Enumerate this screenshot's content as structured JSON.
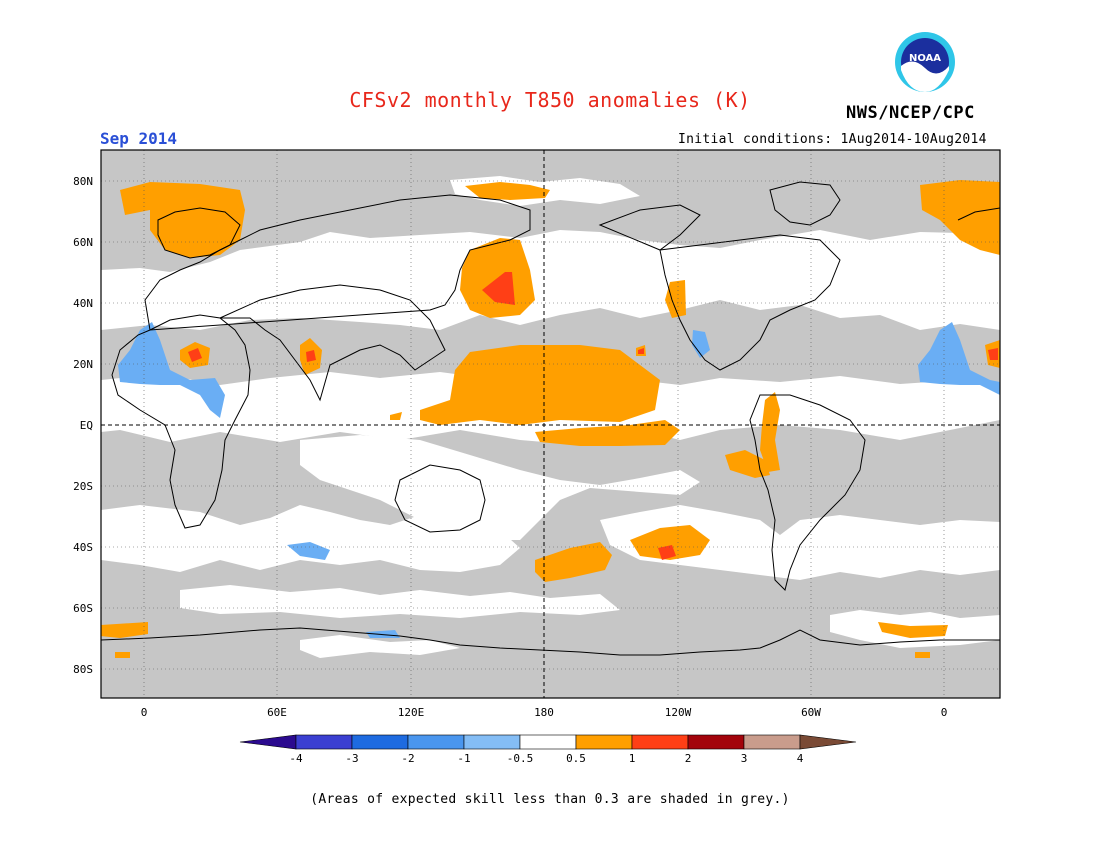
{
  "header": {
    "title": "CFSv2 monthly T850 anomalies (K)",
    "month": "Sep 2014",
    "initial_conditions": "Initial conditions: 1Aug2014-10Aug2014",
    "organization": "NWS/NCEP/CPC",
    "logo_text": "NOAA"
  },
  "axes": {
    "lat_labels": [
      "80N",
      "60N",
      "40N",
      "20N",
      "EQ",
      "20S",
      "40S",
      "60S",
      "80S"
    ],
    "lon_labels": [
      "0",
      "60E",
      "120E",
      "180",
      "120W",
      "60W",
      "0"
    ]
  },
  "colorbar": {
    "tick_labels": [
      "-4",
      "-3",
      "-2",
      "-1",
      "-0.5",
      "0.5",
      "1",
      "2",
      "3",
      "4"
    ],
    "colors": [
      "#2b0a8f",
      "#3b3fd1",
      "#1e6be0",
      "#4a96ee",
      "#84bdf5",
      "#ffffff",
      "#ff9f00",
      "#ff3f16",
      "#a3040b",
      "#c99c8c",
      "#7a4a35"
    ]
  },
  "map_colors": {
    "grey": "#c6c6c6",
    "orange": "#ff9f00",
    "red": "#ff3f16",
    "blue": "#6aaef4"
  },
  "footer": {
    "note": "(Areas of expected skill less than 0.3 are shaded in grey.)"
  }
}
